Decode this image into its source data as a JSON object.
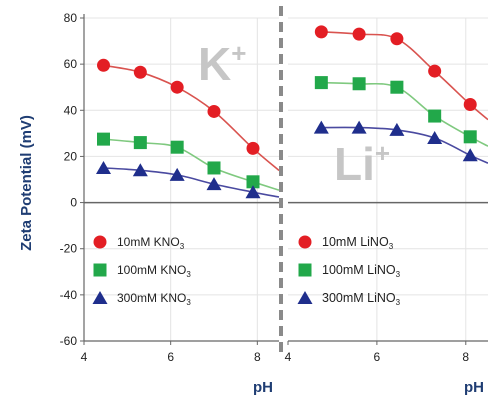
{
  "chart_data": [
    {
      "type": "line",
      "panel": "left",
      "ion_label": "K",
      "ion_charge": "+",
      "xlabel": "pH",
      "ylabel": "Zeta Potential (mV)",
      "xlim": [
        4,
        8.5
      ],
      "ylim": [
        -60,
        80
      ],
      "x_ticks": [
        "4",
        "6",
        "8"
      ],
      "y_ticks": [
        "80",
        "60",
        "40",
        "20",
        "0",
        "-20",
        "-40",
        "-60"
      ],
      "grid": true,
      "legend_position": "lower-left",
      "series": [
        {
          "name": "10mM KNO",
          "name_sub": "3",
          "marker": "circle",
          "color": "#e31e24",
          "line_color": "#d9534f",
          "x": [
            4.45,
            5.3,
            6.15,
            7.0,
            7.9
          ],
          "y": [
            59.5,
            56.5,
            50,
            39.5,
            23.5
          ]
        },
        {
          "name": "100mM KNO",
          "name_sub": "3",
          "marker": "square",
          "color": "#22a84a",
          "line_color": "#7fc97f",
          "x": [
            4.45,
            5.3,
            6.15,
            7.0,
            7.9
          ],
          "y": [
            27.5,
            26,
            24,
            15,
            9
          ]
        },
        {
          "name": "300mM KNO",
          "name_sub": "3",
          "marker": "triangle",
          "color": "#1f2e8c",
          "line_color": "#4a4aa0",
          "x": [
            4.45,
            5.3,
            6.15,
            7.0,
            7.9
          ],
          "y": [
            15,
            14,
            12,
            8,
            4.5
          ]
        }
      ]
    },
    {
      "type": "line",
      "panel": "right",
      "ion_label": "Li",
      "ion_charge": "+",
      "xlabel": "pH",
      "ylabel": "",
      "xlim": [
        4,
        8.5
      ],
      "ylim": [
        -60,
        80
      ],
      "x_ticks": [
        "4",
        "6",
        "8"
      ],
      "grid": true,
      "legend_position": "lower-left",
      "series": [
        {
          "name": "10mM LiNO",
          "name_sub": "3",
          "marker": "circle",
          "color": "#e31e24",
          "line_color": "#d9534f",
          "x": [
            4.75,
            5.6,
            6.45,
            7.3,
            8.1
          ],
          "y": [
            74,
            73,
            71,
            57,
            42.5
          ]
        },
        {
          "name": "100mM LiNO",
          "name_sub": "3",
          "marker": "square",
          "color": "#22a84a",
          "line_color": "#7fc97f",
          "x": [
            4.75,
            5.6,
            6.45,
            7.3,
            8.1
          ],
          "y": [
            52,
            51.5,
            50,
            37.5,
            28.5
          ]
        },
        {
          "name": "300mM LiNO",
          "name_sub": "3",
          "marker": "triangle",
          "color": "#1f2e8c",
          "line_color": "#4a4aa0",
          "x": [
            4.75,
            5.6,
            6.45,
            7.3,
            8.1
          ],
          "y": [
            32.5,
            32.5,
            31.5,
            28,
            20.5
          ]
        }
      ]
    }
  ]
}
